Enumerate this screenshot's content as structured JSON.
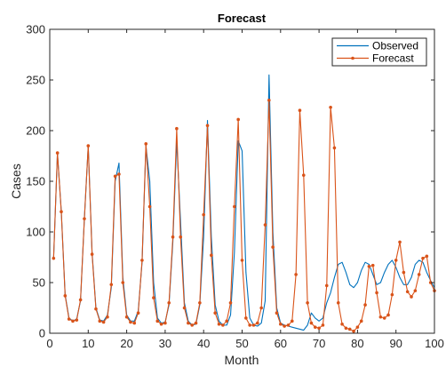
{
  "chart_data": {
    "type": "line",
    "title": "Forecast",
    "xlabel": "Month",
    "ylabel": "Cases",
    "xlim": [
      0,
      100
    ],
    "ylim": [
      0,
      300
    ],
    "xticks": [
      0,
      10,
      20,
      30,
      40,
      50,
      60,
      70,
      80,
      90,
      100
    ],
    "yticks": [
      0,
      50,
      100,
      150,
      200,
      250,
      300
    ],
    "grid": false,
    "legend_position": "top-right",
    "series": [
      {
        "name": "Observed",
        "color": "#0072BD",
        "marker": "none",
        "x": [
          1,
          2,
          3,
          4,
          5,
          6,
          7,
          8,
          9,
          10,
          11,
          12,
          13,
          14,
          15,
          16,
          17,
          18,
          19,
          20,
          21,
          22,
          23,
          24,
          25,
          26,
          27,
          28,
          29,
          30,
          31,
          32,
          33,
          34,
          35,
          36,
          37,
          38,
          39,
          40,
          41,
          42,
          43,
          44,
          45,
          46,
          47,
          48,
          49,
          50,
          51,
          52,
          53,
          54,
          55,
          56,
          57,
          58,
          59,
          60,
          61,
          62,
          63,
          64,
          65,
          66,
          67,
          68,
          69,
          70,
          71,
          72,
          73,
          74,
          75,
          76,
          77,
          78,
          79,
          80,
          81,
          82,
          83,
          84,
          85,
          86,
          87,
          88,
          89,
          90,
          91,
          92,
          93,
          94,
          95,
          96,
          97,
          98,
          99,
          100
        ],
        "values": [
          74,
          178,
          120,
          38,
          15,
          12,
          14,
          32,
          113,
          185,
          80,
          25,
          13,
          12,
          18,
          45,
          150,
          168,
          55,
          18,
          12,
          12,
          22,
          70,
          185,
          150,
          50,
          15,
          10,
          11,
          28,
          90,
          190,
          110,
          30,
          12,
          8,
          9,
          28,
          95,
          210,
          95,
          28,
          12,
          8,
          8,
          18,
          80,
          190,
          180,
          60,
          15,
          8,
          7,
          10,
          32,
          255,
          100,
          25,
          10,
          8,
          7,
          6,
          5,
          4,
          3,
          8,
          20,
          15,
          12,
          15,
          30,
          40,
          55,
          68,
          70,
          60,
          48,
          45,
          50,
          62,
          70,
          68,
          58,
          48,
          50,
          60,
          68,
          72,
          65,
          55,
          48,
          48,
          55,
          68,
          72,
          70,
          60,
          52,
          45
        ]
      },
      {
        "name": "Forecast",
        "color": "#D95319",
        "marker": "dot",
        "x": [
          1,
          2,
          3,
          4,
          5,
          6,
          7,
          8,
          9,
          10,
          11,
          12,
          13,
          14,
          15,
          16,
          17,
          18,
          19,
          20,
          21,
          22,
          23,
          24,
          25,
          26,
          27,
          28,
          29,
          30,
          31,
          32,
          33,
          34,
          35,
          36,
          37,
          38,
          39,
          40,
          41,
          42,
          43,
          44,
          45,
          46,
          47,
          48,
          49,
          50,
          51,
          52,
          53,
          54,
          55,
          56,
          57,
          58,
          59,
          60,
          61,
          62,
          63,
          64,
          65,
          66,
          67,
          68,
          69,
          70,
          71,
          72,
          73,
          74,
          75,
          76,
          77,
          78,
          79,
          80,
          81,
          82,
          83,
          84,
          85,
          86,
          87,
          88,
          89,
          90,
          91,
          92,
          93,
          94,
          95,
          96,
          97,
          98,
          99,
          100
        ],
        "values": [
          74,
          178,
          120,
          37,
          14,
          12,
          13,
          33,
          113,
          185,
          78,
          24,
          12,
          11,
          16,
          48,
          155,
          157,
          50,
          16,
          11,
          10,
          20,
          72,
          187,
          125,
          35,
          12,
          9,
          10,
          30,
          95,
          202,
          95,
          25,
          10,
          8,
          10,
          30,
          117,
          205,
          77,
          20,
          9,
          8,
          12,
          30,
          125,
          211,
          72,
          15,
          8,
          8,
          10,
          25,
          107,
          230,
          85,
          20,
          9,
          7,
          8,
          12,
          58,
          220,
          156,
          30,
          10,
          6,
          5,
          8,
          47,
          223,
          183,
          30,
          9,
          5,
          4,
          2,
          6,
          12,
          28,
          66,
          67,
          40,
          16,
          15,
          18,
          38,
          72,
          90,
          60,
          41,
          36,
          42,
          58,
          74,
          76,
          50,
          42
        ]
      }
    ]
  }
}
